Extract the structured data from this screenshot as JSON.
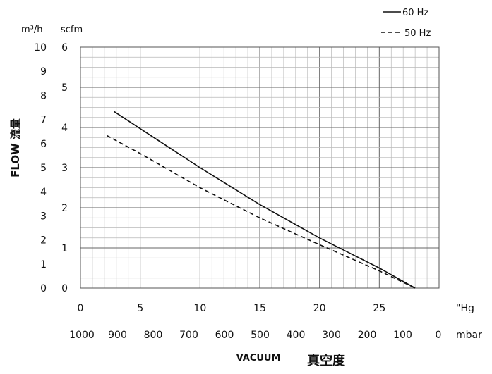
{
  "chart_data": {
    "type": "line",
    "ylabel": "FLOW 流量",
    "xlabel": "VACUUM",
    "xlabel_secondary": "真空度",
    "x_unit": "\"Hg",
    "x2_unit": "mbar",
    "y_unit_left": "m³/h",
    "y_unit_right": "scfm",
    "xlim": [
      0,
      30
    ],
    "ylim_scfm": [
      0,
      6
    ],
    "ylim_m3h": [
      0,
      10
    ],
    "x_ticks": [
      "0",
      "5",
      "10",
      "15",
      "20",
      "25"
    ],
    "x2_ticks": [
      "1000",
      "900",
      "800",
      "700",
      "600",
      "500",
      "400",
      "300",
      "200",
      "100",
      "0"
    ],
    "y_ticks_scfm": [
      "0",
      "1",
      "2",
      "3",
      "4",
      "5",
      "6"
    ],
    "y_ticks_m3h": [
      "0",
      "1",
      "2",
      "3",
      "4",
      "5",
      "6",
      "7",
      "8",
      "9",
      "10"
    ],
    "grid": true,
    "legend_position": "top-right",
    "series": [
      {
        "name": "60 Hz",
        "style": "solid",
        "x": [
          2.8,
          5,
          10,
          15,
          20,
          25,
          28
        ],
        "y": [
          4.4,
          3.97,
          3.0,
          2.08,
          1.25,
          0.5,
          0.0
        ]
      },
      {
        "name": "50 Hz",
        "style": "dashed",
        "x": [
          2.2,
          5,
          10,
          15,
          20,
          25,
          28
        ],
        "y": [
          3.8,
          3.35,
          2.5,
          1.75,
          1.08,
          0.43,
          0.0
        ]
      }
    ]
  },
  "colors": {
    "line": "#111111",
    "grid": "#b8b8b8",
    "grid_major": "#666666"
  }
}
